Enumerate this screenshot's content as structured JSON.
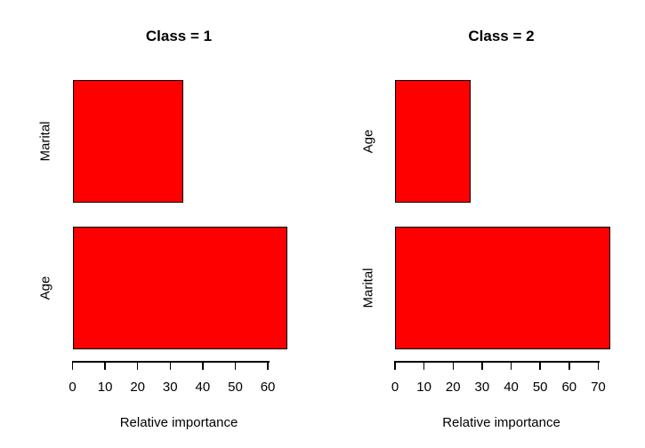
{
  "page": {
    "background_color": "#FFFFFF",
    "text_color": "#000000"
  },
  "chart_data": [
    {
      "type": "bar",
      "orientation": "horizontal",
      "title": "Class = 1",
      "xlabel": "Relative importance",
      "categories": [
        "Marital",
        "Age"
      ],
      "values": [
        34,
        66
      ],
      "xlim": [
        0,
        66
      ],
      "xticks": [
        0,
        10,
        20,
        30,
        40,
        50,
        60
      ],
      "bar_color": "#FF0000",
      "bar_border_color": "#000000",
      "grid": "off",
      "legend": "none"
    },
    {
      "type": "bar",
      "orientation": "horizontal",
      "title": "Class = 2",
      "xlabel": "Relative importance",
      "categories": [
        "Age",
        "Marital"
      ],
      "values": [
        26,
        74
      ],
      "xlim": [
        0,
        74
      ],
      "xticks": [
        0,
        10,
        20,
        30,
        40,
        50,
        60,
        70
      ],
      "bar_color": "#FF0000",
      "bar_border_color": "#000000",
      "grid": "off",
      "legend": "none"
    }
  ]
}
